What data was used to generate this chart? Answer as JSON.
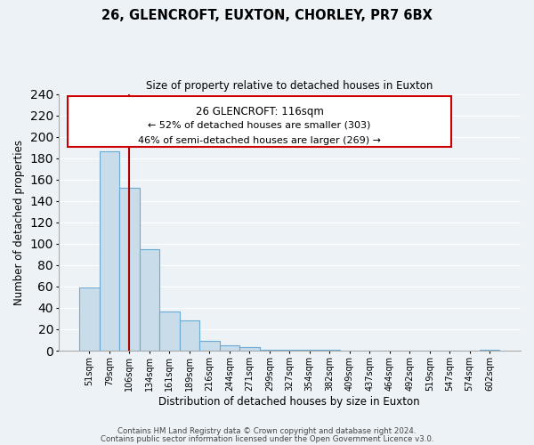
{
  "title": "26, GLENCROFT, EUXTON, CHORLEY, PR7 6BX",
  "subtitle": "Size of property relative to detached houses in Euxton",
  "xlabel": "Distribution of detached houses by size in Euxton",
  "ylabel": "Number of detached properties",
  "bar_color": "#c8dcea",
  "bar_edge_color": "#6aaad4",
  "vline_color": "#aa0000",
  "vline_x_index": 2,
  "categories": [
    "51sqm",
    "79sqm",
    "106sqm",
    "134sqm",
    "161sqm",
    "189sqm",
    "216sqm",
    "244sqm",
    "271sqm",
    "299sqm",
    "327sqm",
    "354sqm",
    "382sqm",
    "409sqm",
    "437sqm",
    "464sqm",
    "492sqm",
    "519sqm",
    "547sqm",
    "574sqm",
    "602sqm"
  ],
  "values": [
    59,
    186,
    152,
    95,
    37,
    28,
    9,
    5,
    3,
    1,
    1,
    1,
    1,
    0,
    0,
    0,
    0,
    0,
    0,
    0,
    1
  ],
  "ylim": [
    0,
    240
  ],
  "yticks": [
    0,
    20,
    40,
    60,
    80,
    100,
    120,
    140,
    160,
    180,
    200,
    220,
    240
  ],
  "annotation_title": "26 GLENCROFT: 116sqm",
  "annotation_line1": "← 52% of detached houses are smaller (303)",
  "annotation_line2": "46% of semi-detached houses are larger (269) →",
  "footer_line1": "Contains HM Land Registry data © Crown copyright and database right 2024.",
  "footer_line2": "Contains public sector information licensed under the Open Government Licence v3.0.",
  "background_color": "#edf2f7",
  "plot_background": "#edf2f7",
  "grid_color": "#ffffff"
}
